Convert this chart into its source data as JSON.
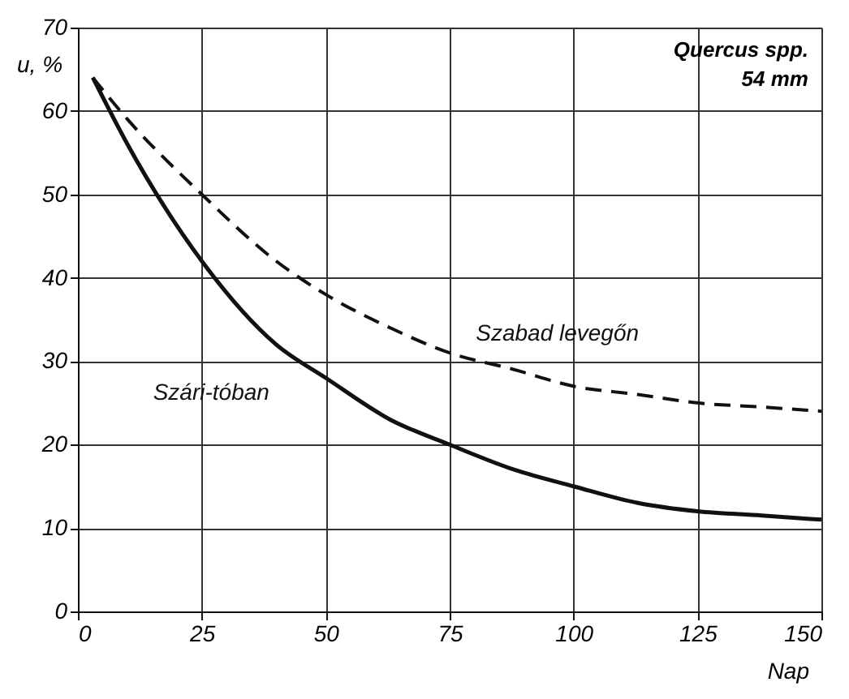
{
  "chart_data": {
    "type": "line",
    "xlabel": "Nap",
    "ylabel": "u, %",
    "annotations": [
      "Quercus spp.",
      "54 mm"
    ],
    "xlim": [
      0,
      150
    ],
    "xticks": [
      0,
      25,
      50,
      75,
      100,
      125,
      150
    ],
    "ylim": [
      0,
      70
    ],
    "yticks": [
      0,
      10,
      20,
      30,
      40,
      50,
      60,
      70
    ],
    "grid": true,
    "series": [
      {
        "name": "Szabad levegőn",
        "color": "#111111",
        "line_style": "dashed",
        "x": [
          3,
          10,
          25,
          40,
          50,
          63,
          75,
          88,
          100,
          113,
          125,
          138,
          150
        ],
        "values": [
          64,
          59,
          50,
          42,
          38,
          34,
          31,
          29,
          27,
          26,
          25,
          24.5,
          24
        ]
      },
      {
        "name": "Szári-tóban",
        "color": "#111111",
        "line_style": "solid",
        "x": [
          3,
          10,
          25,
          40,
          50,
          63,
          75,
          88,
          100,
          113,
          125,
          138,
          150
        ],
        "values": [
          64,
          56,
          42,
          32,
          28,
          23,
          20,
          17,
          15,
          13,
          12,
          11.5,
          11
        ]
      }
    ]
  }
}
